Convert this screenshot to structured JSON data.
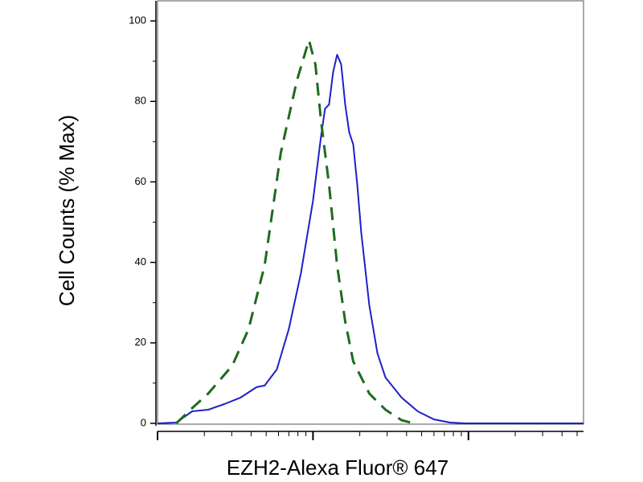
{
  "chart_data": {
    "type": "line",
    "xlabel": "EZH2-Alexa Fluor® 647",
    "ylabel": "Cell Counts (% Max)",
    "xscale": "log",
    "xlim": [
      100,
      55000
    ],
    "xticks": [
      100,
      1000,
      10000
    ],
    "xminorticks": [
      200,
      300,
      400,
      500,
      600,
      700,
      800,
      900,
      2000,
      3000,
      4000,
      5000,
      6000,
      7000,
      8000,
      9000,
      20000,
      30000,
      40000,
      50000
    ],
    "ylim": [
      0,
      105
    ],
    "yticks": [
      0,
      20,
      40,
      60,
      80,
      100
    ],
    "yminorticks": [
      10,
      30,
      50,
      70,
      90
    ],
    "series": [
      {
        "color": "#1f1fc8",
        "dash": false,
        "x": [
          100,
          132,
          167,
          212,
          269,
          342,
          434,
          489,
          585,
          699,
          836,
          1000,
          1127,
          1196,
          1269,
          1347,
          1430,
          1518,
          1612,
          1711,
          1816,
          1928,
          2046,
          2305,
          2597,
          2926,
          3715,
          4718,
          5988,
          7600,
          9650,
          55000
        ],
        "values": [
          0,
          0.2,
          3.0,
          3.4,
          4.8,
          6.4,
          9.0,
          9.4,
          13.4,
          23.4,
          37.3,
          55.3,
          71.3,
          78.2,
          79.2,
          87.2,
          91.6,
          89.2,
          79.2,
          72.3,
          69.3,
          59.3,
          47.3,
          29.3,
          17.4,
          11.4,
          6.4,
          3.0,
          1.0,
          0.2,
          0,
          0
        ]
      },
      {
        "color": "#1e6b1e",
        "dash": true,
        "x": [
          132,
          167,
          212,
          303,
          385,
          489,
          621,
          788,
          942,
          1036,
          1127,
          1269,
          1430,
          1612,
          1816,
          2305,
          2926,
          3715,
          4444
        ],
        "values": [
          0,
          3.8,
          7.4,
          14.4,
          23.4,
          39.3,
          67.3,
          85.2,
          95.2,
          89.2,
          75.2,
          59.3,
          39.3,
          25.3,
          15.4,
          7.4,
          3.4,
          0.8,
          0
        ]
      }
    ]
  }
}
